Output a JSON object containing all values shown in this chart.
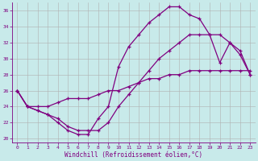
{
  "xlabel": "Windchill (Refroidissement éolien,°C)",
  "bg_color": "#c8eaea",
  "line_color": "#800080",
  "grid_color": "#b0b0b0",
  "xlim": [
    -0.5,
    23.5
  ],
  "ylim": [
    19.5,
    37.0
  ],
  "xticks": [
    0,
    1,
    2,
    3,
    4,
    5,
    6,
    7,
    8,
    9,
    10,
    11,
    12,
    13,
    14,
    15,
    16,
    17,
    18,
    19,
    20,
    21,
    22,
    23
  ],
  "yticks": [
    20,
    22,
    24,
    26,
    28,
    30,
    32,
    34,
    36
  ],
  "line1_x": [
    0,
    1,
    2,
    3,
    4,
    5,
    6,
    7,
    8,
    9,
    10,
    11,
    12,
    13,
    14,
    15,
    16,
    17,
    18,
    19,
    20,
    21,
    22,
    23
  ],
  "line1_y": [
    26,
    24,
    23.5,
    23,
    22,
    21,
    20.5,
    20.5,
    22.5,
    24,
    29,
    31.5,
    33,
    34.5,
    35.5,
    36.5,
    36.5,
    35.5,
    35,
    33,
    29.5,
    32,
    31,
    28
  ],
  "line2_x": [
    0,
    1,
    2,
    3,
    4,
    5,
    6,
    7,
    8,
    9,
    10,
    11,
    12,
    13,
    14,
    15,
    16,
    17,
    18,
    19,
    20,
    21,
    22,
    23
  ],
  "line2_y": [
    26,
    24,
    23.5,
    23,
    22.5,
    21.5,
    21,
    21,
    21,
    22,
    24,
    25.5,
    27,
    28.5,
    30,
    31,
    32,
    33,
    33,
    33,
    33,
    32,
    30.5,
    28
  ],
  "line3_x": [
    0,
    1,
    2,
    3,
    4,
    5,
    6,
    7,
    8,
    9,
    10,
    11,
    12,
    13,
    14,
    15,
    16,
    17,
    18,
    19,
    20,
    21,
    22,
    23
  ],
  "line3_y": [
    26,
    24,
    24,
    24,
    24.5,
    25,
    25,
    25,
    25.5,
    26,
    26,
    26.5,
    27,
    27.5,
    27.5,
    28,
    28,
    28.5,
    28.5,
    28.5,
    28.5,
    28.5,
    28.5,
    28.5
  ]
}
